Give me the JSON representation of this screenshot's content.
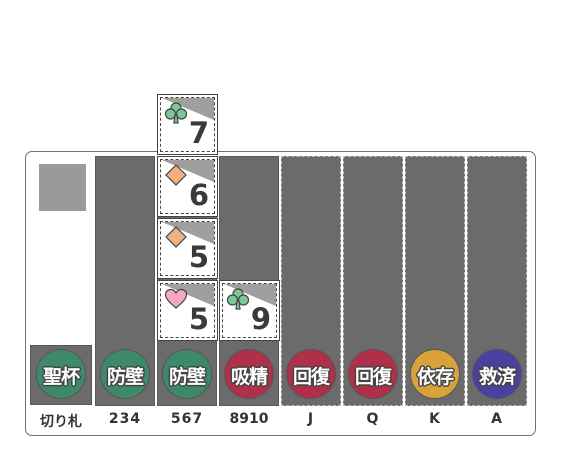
{
  "columns": [
    {
      "id": "trump",
      "label": "切り札",
      "badge": "聖杯",
      "badge_color": "#3d8a6a"
    },
    {
      "id": "234",
      "label": "234",
      "badge": "防壁",
      "badge_color": "#3d8a6a"
    },
    {
      "id": "567",
      "label": "567",
      "badge": "防壁",
      "badge_color": "#3d8a6a"
    },
    {
      "id": "8910",
      "label": "8910",
      "badge": "吸精",
      "badge_color": "#b0304a"
    },
    {
      "id": "J",
      "label": "J",
      "badge": "回復",
      "badge_color": "#b0304a"
    },
    {
      "id": "Q",
      "label": "Q",
      "badge": "回復",
      "badge_color": "#b0304a"
    },
    {
      "id": "K",
      "label": "K",
      "badge": "依存",
      "badge_color": "#d8a23a"
    },
    {
      "id": "A",
      "label": "A",
      "badge": "救済",
      "badge_color": "#4a40a0"
    }
  ],
  "cards": [
    {
      "rank": "7",
      "suit": "club-icon",
      "suit_color": "#7fc79a"
    },
    {
      "rank": "6",
      "suit": "diamond-icon",
      "suit_color": "#f0b080"
    },
    {
      "rank": "5",
      "suit": "diamond-icon",
      "suit_color": "#f0b080"
    },
    {
      "rank": "5",
      "suit": "heart-icon",
      "suit_color": "#f7a8c8"
    },
    {
      "rank": "9",
      "suit": "club-icon",
      "suit_color": "#7fc79a"
    }
  ]
}
